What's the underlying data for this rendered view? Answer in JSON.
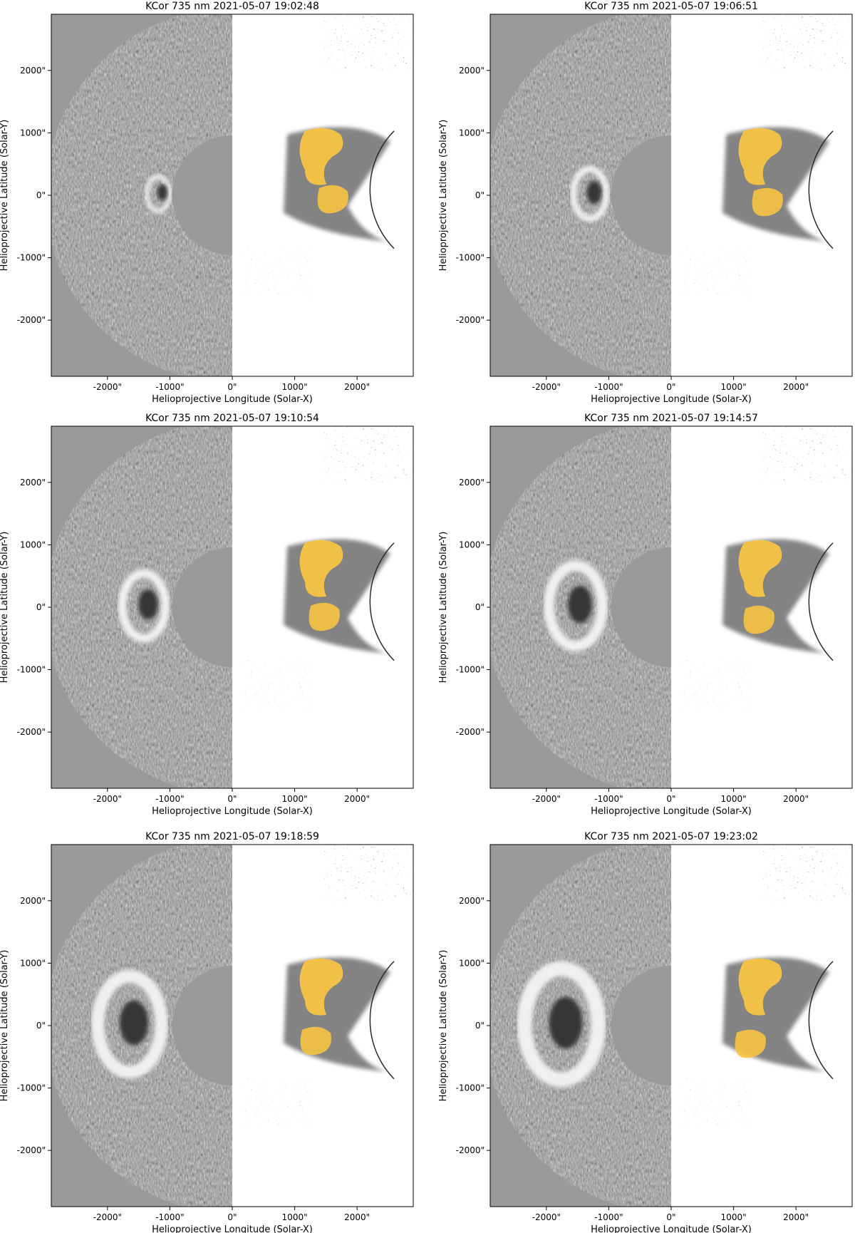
{
  "figure": {
    "instrument_label": "KCor 735 nm",
    "x_axis_label": "Helioprojective Longitude (Solar-X)",
    "y_axis_label": "Helioprojective Latitude (Solar-Y)",
    "x_tick_labels": [
      "-2000\"",
      "-1000\"",
      "0\"",
      "1000\"",
      "2000\""
    ],
    "y_tick_labels": [
      "2000\"",
      "1000\"",
      "0\"",
      "-1000\"",
      "-2000\""
    ],
    "colors": {
      "background": "#ffffff",
      "difference_gray": "#9a9a9a",
      "structure_dark": "#2a2a2a",
      "mask_gray": "#6e6e6e",
      "highlight_yellow": "#f7c343",
      "axis": "#000000"
    },
    "panels": [
      {
        "title": "KCor 735 nm 2021-05-07 19:02:48"
      },
      {
        "title": "KCor 735 nm 2021-05-07 19:06:51"
      },
      {
        "title": "KCor 735 nm 2021-05-07 19:10:54"
      },
      {
        "title": "KCor 735 nm 2021-05-07 19:14:57"
      },
      {
        "title": "KCor 735 nm 2021-05-07 19:18:59"
      },
      {
        "title": "KCor 735 nm 2021-05-07 19:23:02"
      }
    ]
  }
}
